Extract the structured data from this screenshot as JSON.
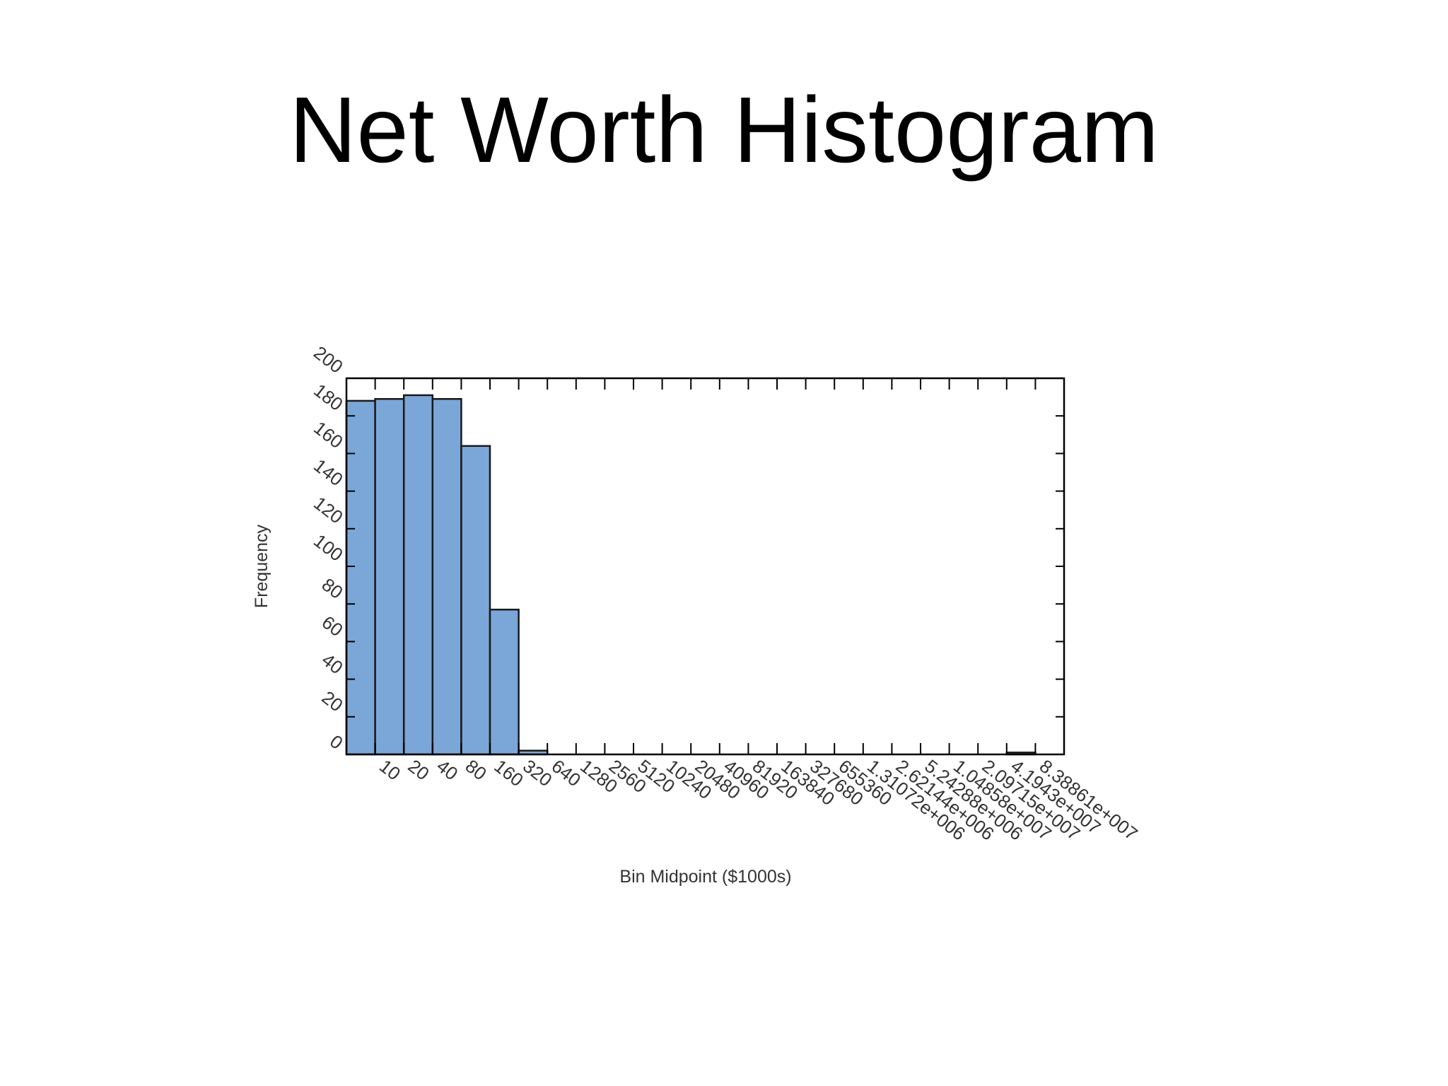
{
  "slide": {
    "title": "Net Worth Histogram"
  },
  "chart_data": {
    "type": "bar",
    "title": "",
    "xlabel": "Bin Midpoint ($1000s)",
    "ylabel": "Frequency",
    "ylim": [
      0,
      200
    ],
    "yticks": [
      "0",
      "20",
      "40",
      "60",
      "80",
      "100",
      "120",
      "140",
      "160",
      "180",
      "200"
    ],
    "categories": [
      "",
      "10",
      "20",
      "40",
      "80",
      "160",
      "320",
      "640",
      "1280",
      "2560",
      "5120",
      "10240",
      "20480",
      "40960",
      "81920",
      "163840",
      "327680",
      "655360",
      "1.31072e+006",
      "2.62144e+006",
      "5.24288e+006",
      "1.04858e+007",
      "2.09715e+007",
      "4.1943e+007",
      "8.38861e+007"
    ],
    "values": [
      188,
      189,
      191,
      189,
      164,
      77,
      2,
      0,
      0,
      0,
      0,
      0,
      0,
      0,
      0,
      0,
      0,
      0,
      0,
      0,
      0,
      0,
      0,
      1,
      0
    ],
    "grid": false,
    "legend": "none",
    "colors": {
      "bar": "#7BA6D8",
      "bar_edge": "#1a1a1a",
      "frame": "#000000"
    }
  }
}
